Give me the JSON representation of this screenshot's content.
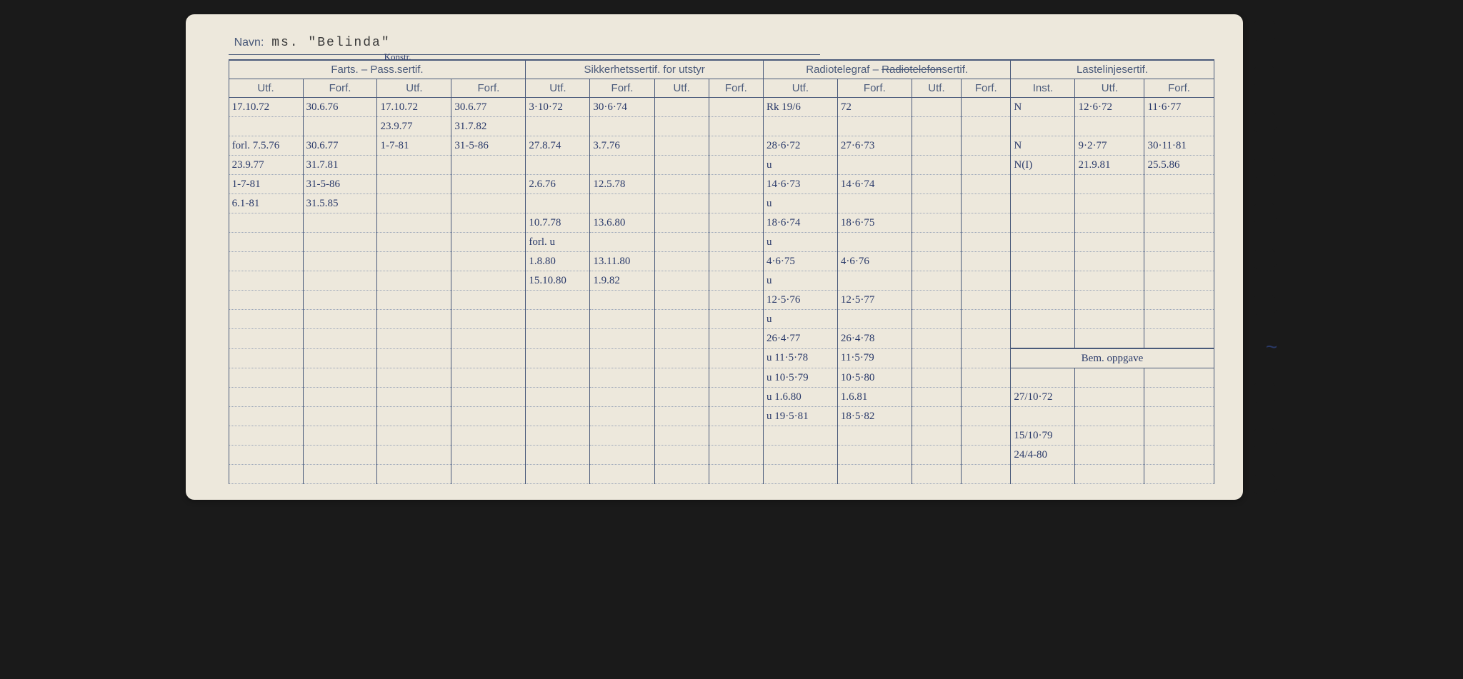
{
  "navn_label": "Navn:",
  "navn_value": "ms. \"Belinda\"",
  "annotation_pass": "Konstr.",
  "groups": {
    "farts": "Farts. – Pass.sertif.",
    "sikkerhet": "Sikkerhetssertif. for utstyr",
    "radio": "Radiotelegraf – Radiotelefonsertif.",
    "laste": "Lastelinjesertif."
  },
  "subheaders": {
    "utf": "Utf.",
    "forf": "Forf.",
    "inst": "Inst."
  },
  "bem_label": "Bem. oppgave",
  "rows": [
    {
      "c0": "17.10.72",
      "c1": "30.6.76",
      "c2": "17.10.72",
      "c3": "30.6.77",
      "c4": "3·10·72",
      "c5": "30·6·74",
      "c6": "",
      "c7": "",
      "c8": "Rk 19/6",
      "c9": "72",
      "c10": "",
      "c11": "",
      "c12": "N",
      "c13": "12·6·72",
      "c14": "11·6·77"
    },
    {
      "c0": "",
      "c1": "",
      "c2": "23.9.77",
      "c3": "31.7.82",
      "c4": "",
      "c5": "",
      "c6": "",
      "c7": "",
      "c8": "",
      "c9": "",
      "c10": "",
      "c11": "",
      "c12": "",
      "c13": "",
      "c14": ""
    },
    {
      "c0": "forl. 7.5.76",
      "c1": "30.6.77",
      "c2": "1-7-81",
      "c3": "31-5-86",
      "c4": "27.8.74",
      "c5": "3.7.76",
      "c6": "",
      "c7": "",
      "c8": "28·6·72",
      "c9": "27·6·73",
      "c10": "",
      "c11": "",
      "c12": "N",
      "c13": "9·2·77",
      "c14": "30·11·81"
    },
    {
      "c0": "23.9.77",
      "c1": "31.7.81",
      "c2": "",
      "c3": "",
      "c4": "",
      "c5": "",
      "c6": "",
      "c7": "",
      "c8": "u",
      "c9": "",
      "c10": "",
      "c11": "",
      "c12": "N(I)",
      "c13": "21.9.81",
      "c14": "25.5.86"
    },
    {
      "c0": "1-7-81",
      "c1": "31-5-86",
      "c2": "",
      "c3": "",
      "c4": "2.6.76",
      "c5": "12.5.78",
      "c6": "",
      "c7": "",
      "c8": "14·6·73",
      "c9": "14·6·74",
      "c10": "",
      "c11": "",
      "c12": "",
      "c13": "",
      "c14": ""
    },
    {
      "c0": "6.1-81",
      "c1": "31.5.85",
      "c2": "",
      "c3": "",
      "c4": "",
      "c5": "",
      "c6": "",
      "c7": "",
      "c8": "u",
      "c9": "",
      "c10": "",
      "c11": "",
      "c12": "",
      "c13": "",
      "c14": ""
    },
    {
      "c0": "",
      "c1": "",
      "c2": "",
      "c3": "",
      "c4": "10.7.78",
      "c5": "13.6.80",
      "c6": "",
      "c7": "",
      "c8": "18·6·74",
      "c9": "18·6·75",
      "c10": "",
      "c11": "",
      "c12": "",
      "c13": "",
      "c14": ""
    },
    {
      "c0": "",
      "c1": "",
      "c2": "",
      "c3": "",
      "c4": "forl. u",
      "c5": "",
      "c6": "",
      "c7": "",
      "c8": "u",
      "c9": "",
      "c10": "",
      "c11": "",
      "c12": "",
      "c13": "",
      "c14": ""
    },
    {
      "c0": "",
      "c1": "",
      "c2": "",
      "c3": "",
      "c4": "1.8.80",
      "c5": "13.11.80",
      "c6": "",
      "c7": "",
      "c8": "4·6·75",
      "c9": "4·6·76",
      "c10": "",
      "c11": "",
      "c12": "",
      "c13": "",
      "c14": ""
    },
    {
      "c0": "",
      "c1": "",
      "c2": "",
      "c3": "",
      "c4": "15.10.80",
      "c5": "1.9.82",
      "c6": "",
      "c7": "",
      "c8": "u",
      "c9": "",
      "c10": "",
      "c11": "",
      "c12": "",
      "c13": "",
      "c14": ""
    },
    {
      "c0": "",
      "c1": "",
      "c2": "",
      "c3": "",
      "c4": "",
      "c5": "",
      "c6": "",
      "c7": "",
      "c8": "12·5·76",
      "c9": "12·5·77",
      "c10": "",
      "c11": "",
      "c12": "",
      "c13": "",
      "c14": ""
    },
    {
      "c0": "",
      "c1": "",
      "c2": "",
      "c3": "",
      "c4": "",
      "c5": "",
      "c6": "",
      "c7": "",
      "c8": "u",
      "c9": "",
      "c10": "",
      "c11": "",
      "c12": "",
      "c13": "",
      "c14": ""
    },
    {
      "c0": "",
      "c1": "",
      "c2": "",
      "c3": "",
      "c4": "",
      "c5": "",
      "c6": "",
      "c7": "",
      "c8": "26·4·77",
      "c9": "26·4·78",
      "c10": "",
      "c11": "",
      "c12": "",
      "c13": "",
      "c14": ""
    },
    {
      "c0": "",
      "c1": "",
      "c2": "",
      "c3": "",
      "c4": "",
      "c5": "",
      "c6": "",
      "c7": "",
      "c8": "u 11·5·78",
      "c9": "11·5·79",
      "c10": "",
      "c11": "",
      "c12": "",
      "c13": "",
      "c14": "",
      "bem_start": true
    },
    {
      "c0": "",
      "c1": "",
      "c2": "",
      "c3": "",
      "c4": "",
      "c5": "",
      "c6": "",
      "c7": "",
      "c8": "u 10·5·79",
      "c9": "10·5·80",
      "c10": "",
      "c11": "",
      "c12": "",
      "c13": "",
      "c14": ""
    },
    {
      "c0": "",
      "c1": "",
      "c2": "",
      "c3": "",
      "c4": "",
      "c5": "",
      "c6": "",
      "c7": "",
      "c8": "u 1.6.80",
      "c9": "1.6.81",
      "c10": "",
      "c11": "",
      "c12": "27/10·72",
      "c13": "",
      "c14": ""
    },
    {
      "c0": "",
      "c1": "",
      "c2": "",
      "c3": "",
      "c4": "",
      "c5": "",
      "c6": "",
      "c7": "",
      "c8": "u 19·5·81",
      "c9": "18·5·82",
      "c10": "",
      "c11": "",
      "c12": "",
      "c13": "",
      "c14": ""
    },
    {
      "c0": "",
      "c1": "",
      "c2": "",
      "c3": "",
      "c4": "",
      "c5": "",
      "c6": "",
      "c7": "",
      "c8": "",
      "c9": "",
      "c10": "",
      "c11": "",
      "c12": "15/10·79",
      "c13": "",
      "c14": ""
    },
    {
      "c0": "",
      "c1": "",
      "c2": "",
      "c3": "",
      "c4": "",
      "c5": "",
      "c6": "",
      "c7": "",
      "c8": "",
      "c9": "",
      "c10": "",
      "c11": "",
      "c12": "24/4-80",
      "c13": "",
      "c14": ""
    },
    {
      "c0": "",
      "c1": "",
      "c2": "",
      "c3": "",
      "c4": "",
      "c5": "",
      "c6": "",
      "c7": "",
      "c8": "",
      "c9": "",
      "c10": "",
      "c11": "",
      "c12": "",
      "c13": "",
      "c14": ""
    }
  ],
  "colwidths": [
    "7.5%",
    "7.5%",
    "7.5%",
    "7.5%",
    "6.5%",
    "6.5%",
    "5.5%",
    "5.5%",
    "7.5%",
    "7.5%",
    "5%",
    "5%",
    "6.5%",
    "7%",
    "7%"
  ],
  "colors": {
    "paper": "#ede8dc",
    "line": "#4a5a7a",
    "ink": "#2a3a6a"
  }
}
